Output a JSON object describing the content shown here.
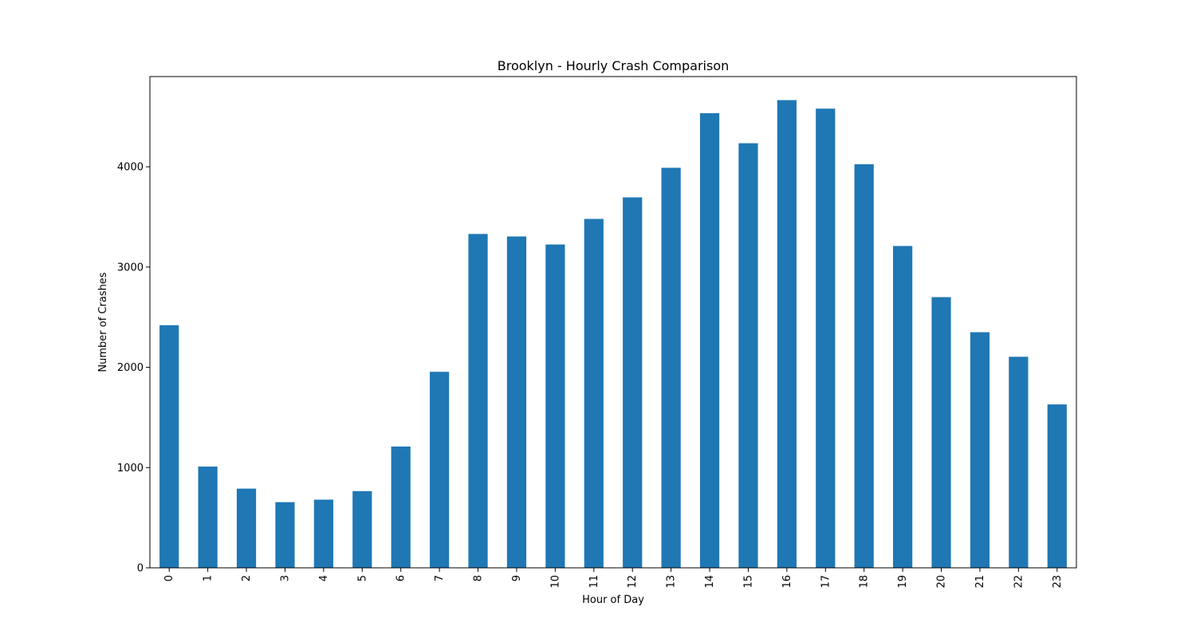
{
  "chart_data": {
    "type": "bar",
    "title": "Brooklyn - Hourly Crash Comparison",
    "xlabel": "Hour of Day",
    "ylabel": "Number of Crashes",
    "categories": [
      "0",
      "1",
      "2",
      "3",
      "4",
      "5",
      "6",
      "7",
      "8",
      "9",
      "10",
      "11",
      "12",
      "13",
      "14",
      "15",
      "16",
      "17",
      "18",
      "19",
      "20",
      "21",
      "22",
      "23"
    ],
    "values": [
      2420,
      1010,
      790,
      655,
      680,
      765,
      1210,
      1955,
      3330,
      3305,
      3225,
      3480,
      3695,
      3990,
      4535,
      4235,
      4665,
      4580,
      4025,
      3210,
      2700,
      2350,
      2105,
      1630
    ],
    "yticks": [
      0,
      1000,
      2000,
      3000,
      4000
    ],
    "ylim": [
      0,
      4900
    ],
    "grid": false,
    "legend": false,
    "bar_color": "#1f77b4",
    "x_tick_rotation": -90
  }
}
